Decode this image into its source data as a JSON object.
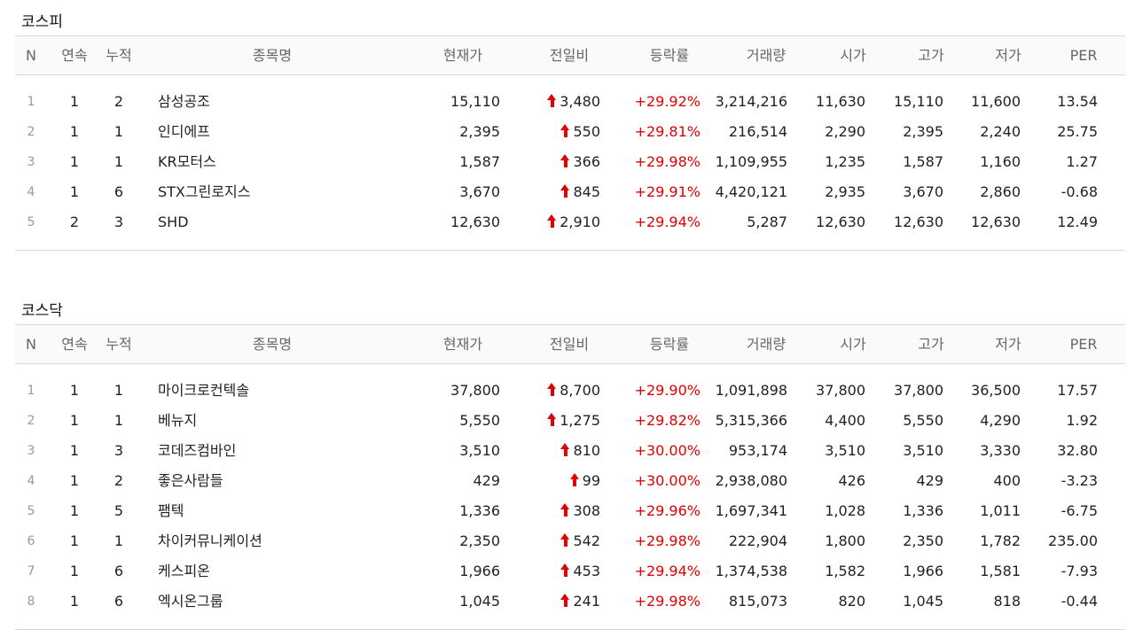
{
  "colors": {
    "up": "#e10000",
    "border": "#d8d8d8"
  },
  "headers": {
    "n": "N",
    "continuous": "연속",
    "accumulated": "누적",
    "name": "종목명",
    "price": "현재가",
    "change": "전일비",
    "rate": "등락률",
    "volume": "거래량",
    "open": "시가",
    "high": "고가",
    "low": "저가",
    "per": "PER"
  },
  "kospi": {
    "title": "코스피",
    "rows": [
      {
        "n": "1",
        "cont": "1",
        "acc": "2",
        "name": "삼성공조",
        "price": "15,110",
        "change": "3,480",
        "rate": "+29.92%",
        "volume": "3,214,216",
        "open": "11,630",
        "high": "15,110",
        "low": "11,600",
        "per": "13.54"
      },
      {
        "n": "2",
        "cont": "1",
        "acc": "1",
        "name": "인디에프",
        "price": "2,395",
        "change": "550",
        "rate": "+29.81%",
        "volume": "216,514",
        "open": "2,290",
        "high": "2,395",
        "low": "2,240",
        "per": "25.75"
      },
      {
        "n": "3",
        "cont": "1",
        "acc": "1",
        "name": "KR모터스",
        "price": "1,587",
        "change": "366",
        "rate": "+29.98%",
        "volume": "1,109,955",
        "open": "1,235",
        "high": "1,587",
        "low": "1,160",
        "per": "1.27"
      },
      {
        "n": "4",
        "cont": "1",
        "acc": "6",
        "name": "STX그린로지스",
        "price": "3,670",
        "change": "845",
        "rate": "+29.91%",
        "volume": "4,420,121",
        "open": "2,935",
        "high": "3,670",
        "low": "2,860",
        "per": "-0.68"
      },
      {
        "n": "5",
        "cont": "2",
        "acc": "3",
        "name": "SHD",
        "price": "12,630",
        "change": "2,910",
        "rate": "+29.94%",
        "volume": "5,287",
        "open": "12,630",
        "high": "12,630",
        "low": "12,630",
        "per": "12.49"
      }
    ]
  },
  "kosdaq": {
    "title": "코스닥",
    "rows": [
      {
        "n": "1",
        "cont": "1",
        "acc": "1",
        "name": "마이크로컨텍솔",
        "price": "37,800",
        "change": "8,700",
        "rate": "+29.90%",
        "volume": "1,091,898",
        "open": "37,800",
        "high": "37,800",
        "low": "36,500",
        "per": "17.57"
      },
      {
        "n": "2",
        "cont": "1",
        "acc": "1",
        "name": "베뉴지",
        "price": "5,550",
        "change": "1,275",
        "rate": "+29.82%",
        "volume": "5,315,366",
        "open": "4,400",
        "high": "5,550",
        "low": "4,290",
        "per": "1.92"
      },
      {
        "n": "3",
        "cont": "1",
        "acc": "3",
        "name": "코데즈컴바인",
        "price": "3,510",
        "change": "810",
        "rate": "+30.00%",
        "volume": "953,174",
        "open": "3,510",
        "high": "3,510",
        "low": "3,330",
        "per": "32.80"
      },
      {
        "n": "4",
        "cont": "1",
        "acc": "2",
        "name": "좋은사람들",
        "price": "429",
        "change": "99",
        "rate": "+30.00%",
        "volume": "2,938,080",
        "open": "426",
        "high": "429",
        "low": "400",
        "per": "-3.23"
      },
      {
        "n": "5",
        "cont": "1",
        "acc": "5",
        "name": "팸텍",
        "price": "1,336",
        "change": "308",
        "rate": "+29.96%",
        "volume": "1,697,341",
        "open": "1,028",
        "high": "1,336",
        "low": "1,011",
        "per": "-6.75"
      },
      {
        "n": "6",
        "cont": "1",
        "acc": "1",
        "name": "차이커뮤니케이션",
        "price": "2,350",
        "change": "542",
        "rate": "+29.98%",
        "volume": "222,904",
        "open": "1,800",
        "high": "2,350",
        "low": "1,782",
        "per": "235.00"
      },
      {
        "n": "7",
        "cont": "1",
        "acc": "6",
        "name": "케스피온",
        "price": "1,966",
        "change": "453",
        "rate": "+29.94%",
        "volume": "1,374,538",
        "open": "1,582",
        "high": "1,966",
        "low": "1,581",
        "per": "-7.93"
      },
      {
        "n": "8",
        "cont": "1",
        "acc": "6",
        "name": "엑시온그룹",
        "price": "1,045",
        "change": "241",
        "rate": "+29.98%",
        "volume": "815,073",
        "open": "820",
        "high": "1,045",
        "low": "818",
        "per": "-0.44"
      }
    ]
  }
}
